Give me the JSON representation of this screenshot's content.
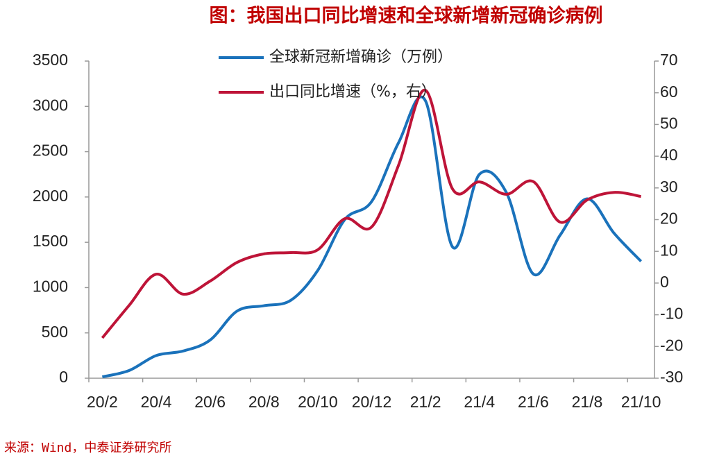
{
  "chart_data": {
    "type": "line",
    "title": "图：我国出口同比增速和全球新增新冠确诊病例",
    "source": "来源：Wind，中泰证券研究所",
    "categories": [
      "20/2",
      null,
      "20/4",
      null,
      "20/6",
      null,
      "20/8",
      null,
      "20/10",
      null,
      "20/12",
      null,
      "21/2",
      null,
      "21/4",
      null,
      "21/6",
      null,
      "21/8",
      null,
      "21/10"
    ],
    "series": [
      {
        "name": "全球新冠新增确诊（万例）",
        "color": "#1a72bb",
        "axis": "y",
        "values": [
          15,
          85,
          250,
          300,
          420,
          740,
          800,
          860,
          1190,
          1750,
          1950,
          2600,
          3060,
          1450,
          2250,
          2050,
          1150,
          1580,
          1980,
          1600,
          1290
        ]
      },
      {
        "name": "出口同比增速（%，右）",
        "color": "#be1438",
        "axis": "y2",
        "values": [
          -17.3,
          -7,
          2.8,
          -3.5,
          0.6,
          6.5,
          9.2,
          9.6,
          10.5,
          20.3,
          17.7,
          37.2,
          60.8,
          29.7,
          31.9,
          28,
          32,
          19.2,
          26.2,
          28.6,
          27.3
        ]
      }
    ],
    "ylim": [
      0,
      3500
    ],
    "yticks": [
      0,
      500,
      1000,
      1500,
      2000,
      2500,
      3000,
      3500
    ],
    "y2lim": [
      -30,
      70
    ],
    "y2ticks": [
      -30,
      -20,
      -10,
      0,
      10,
      20,
      30,
      40,
      50,
      60,
      70
    ],
    "grid": false
  }
}
